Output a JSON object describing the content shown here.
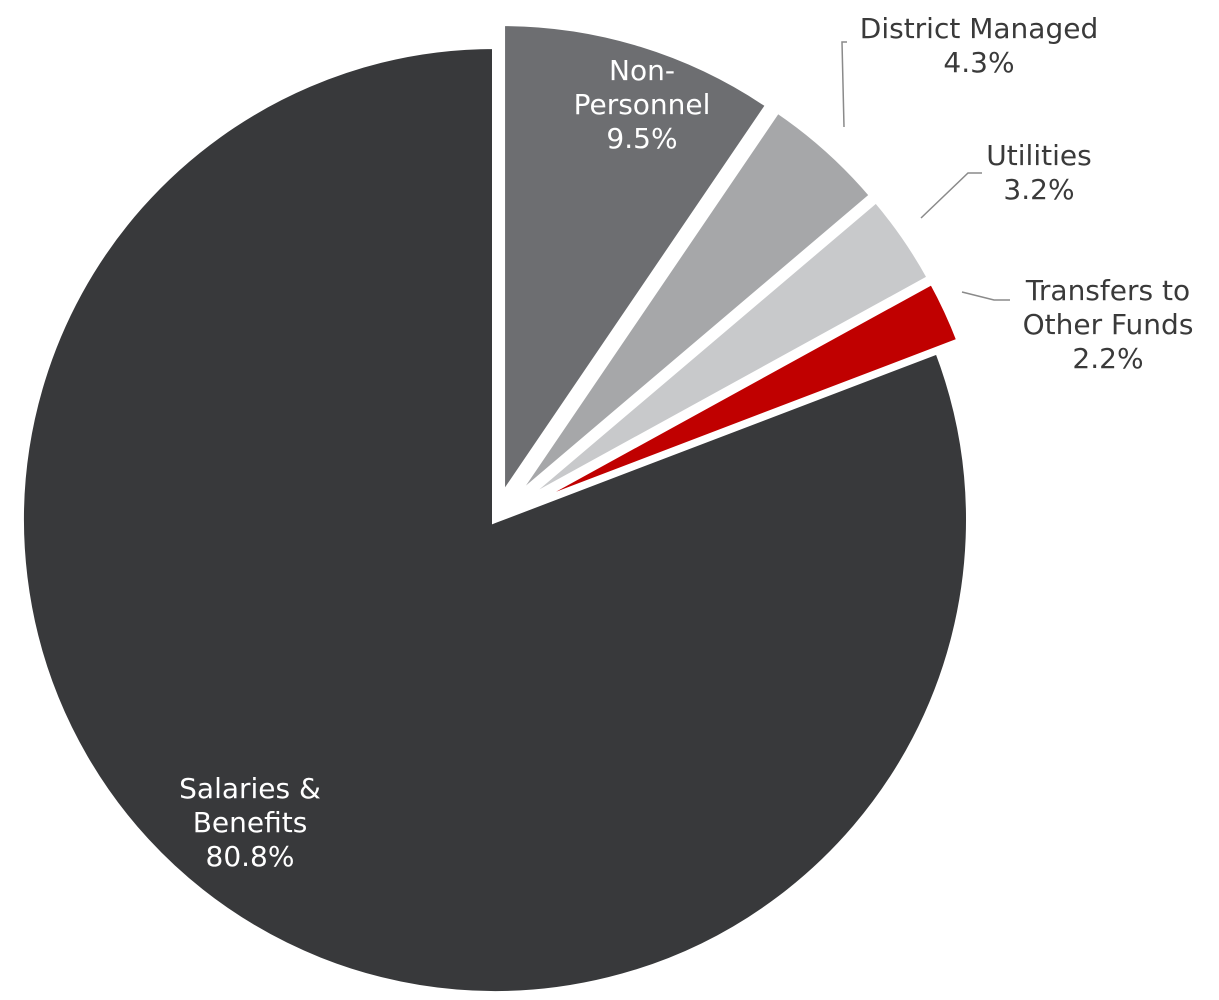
{
  "chart_data": {
    "type": "pie",
    "slices": [
      {
        "name": "Salaries & Benefits",
        "label_lines": [
          "Salaries &",
          "Benefits"
        ],
        "value": 80.8,
        "value_label": "80.8%",
        "color": "#38393b",
        "label_color": "#ffffff",
        "exploded": false
      },
      {
        "name": "Non-Personnel",
        "label_lines": [
          "Non-",
          "Personnel"
        ],
        "value": 9.5,
        "value_label": "9.5%",
        "color": "#6d6e71",
        "label_color": "#ffffff",
        "exploded": true
      },
      {
        "name": "District Managed",
        "label_lines": [
          "District Managed"
        ],
        "value": 4.3,
        "value_label": "4.3%",
        "color": "#a6a7a9",
        "label_color": "#3a3a3a",
        "exploded": true
      },
      {
        "name": "Utilities",
        "label_lines": [
          "Utilities"
        ],
        "value": 3.2,
        "value_label": "3.2%",
        "color": "#c8c9cb",
        "label_color": "#3a3a3a",
        "exploded": true
      },
      {
        "name": "Transfers to Other Funds",
        "label_lines": [
          "Transfers to",
          "Other Funds"
        ],
        "value": 2.2,
        "value_label": "2.2%",
        "color": "#c00000",
        "label_color": "#3a3a3a",
        "exploded": true
      }
    ],
    "title": "",
    "legend": "none",
    "leader_line_color": "#8a8a8a"
  }
}
